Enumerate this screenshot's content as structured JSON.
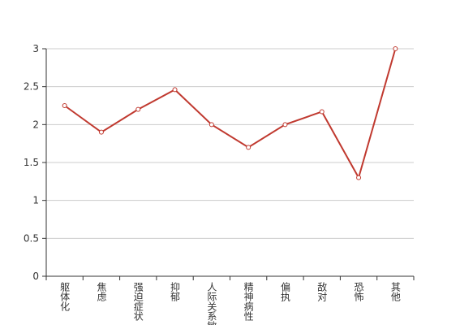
{
  "chart_data": {
    "type": "line",
    "categories": [
      "躯体化",
      "焦虑",
      "强迫症状",
      "抑郁",
      "人际关系敏感",
      "精神病性",
      "偏执",
      "敌对",
      "恐怖",
      "其他"
    ],
    "series": [
      {
        "color": "#c0392f",
        "values": [
          2.25,
          1.9,
          2.2,
          2.46,
          2.0,
          1.7,
          2.0,
          2.17,
          1.3,
          3.0
        ]
      }
    ],
    "ylim": [
      0,
      3
    ],
    "yticks": [
      0,
      0.5,
      1,
      1.5,
      2,
      2.5,
      3
    ],
    "grid": true
  }
}
